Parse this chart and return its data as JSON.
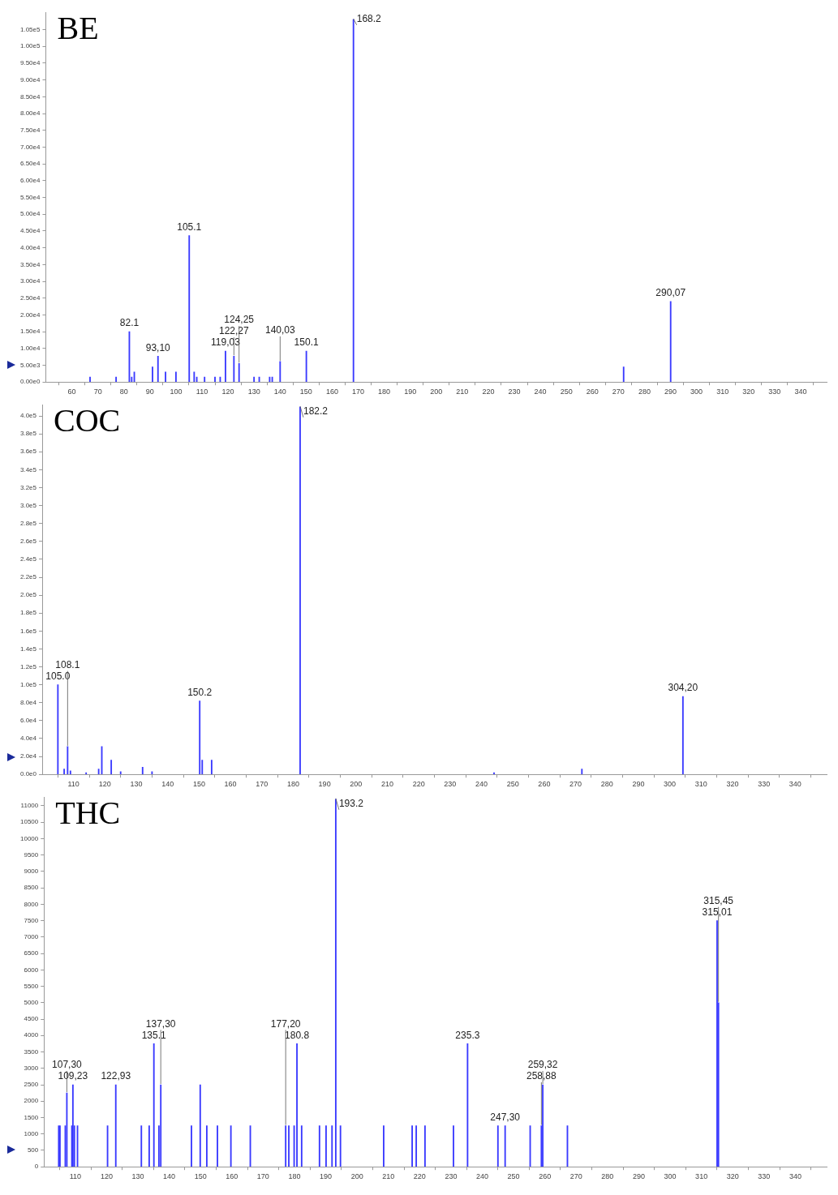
{
  "chart_data": [
    {
      "type": "bar",
      "title": "BE",
      "color": "#3a3aff",
      "grid": false,
      "legend": false,
      "x": [
        67,
        77,
        82.1,
        83,
        84,
        91,
        93.1,
        96,
        100,
        105.1,
        107,
        108,
        111,
        115,
        117,
        119.03,
        122.27,
        124.25,
        130,
        132,
        136,
        137,
        140.03,
        150.1,
        168.2,
        272,
        290.07
      ],
      "values": [
        1500,
        1500,
        15000,
        1500,
        3000,
        4500,
        7700,
        3000,
        3000,
        43600,
        3000,
        1500,
        1500,
        1500,
        1500,
        9200,
        7700,
        5500,
        1500,
        1500,
        1500,
        1500,
        6100,
        9200,
        108000,
        4500,
        24000
      ],
      "xlim": [
        50,
        350
      ],
      "xticks": [
        60,
        70,
        80,
        90,
        100,
        110,
        120,
        130,
        140,
        150,
        160,
        170,
        180,
        190,
        200,
        210,
        220,
        230,
        240,
        250,
        260,
        270,
        280,
        290,
        300,
        310,
        320,
        330,
        340
      ],
      "ylim": [
        0,
        110000
      ],
      "yticks": [
        {
          "value": 0,
          "label": "0.00e0"
        },
        {
          "value": 5000,
          "label": "5.00e3"
        },
        {
          "value": 10000,
          "label": "1.00e4"
        },
        {
          "value": 15000,
          "label": "1.50e4"
        },
        {
          "value": 20000,
          "label": "2.00e4"
        },
        {
          "value": 25000,
          "label": "2.50e4"
        },
        {
          "value": 30000,
          "label": "3.00e4"
        },
        {
          "value": 35000,
          "label": "3.50e4"
        },
        {
          "value": 40000,
          "label": "4.00e4"
        },
        {
          "value": 45000,
          "label": "4.50e4"
        },
        {
          "value": 50000,
          "label": "5.00e4"
        },
        {
          "value": 55000,
          "label": "5.50e4"
        },
        {
          "value": 60000,
          "label": "6.00e4"
        },
        {
          "value": 65000,
          "label": "6.50e4"
        },
        {
          "value": 70000,
          "label": "7.00e4"
        },
        {
          "value": 75000,
          "label": "7.50e4"
        },
        {
          "value": 80000,
          "label": "8.00e4"
        },
        {
          "value": 85000,
          "label": "8.50e4"
        },
        {
          "value": 90000,
          "label": "9.00e4"
        },
        {
          "value": 95000,
          "label": "9.50e4"
        },
        {
          "value": 100000,
          "label": "1.00e5"
        },
        {
          "value": 105000,
          "label": "1.05e5"
        }
      ],
      "annotations": [
        {
          "text": "168.2",
          "x": 168.2,
          "y": 108000
        },
        {
          "text": "105.1",
          "x": 105.1,
          "y": 43600
        },
        {
          "text": "82.1",
          "x": 82.1,
          "y": 15000
        },
        {
          "text": "150.1",
          "x": 150.1,
          "y": 9200
        },
        {
          "text": "93,10",
          "x": 93.1,
          "y": 7700
        },
        {
          "text": "119,03",
          "x": 119.03,
          "y": 9200
        },
        {
          "text": "122,27",
          "x": 122.27,
          "y": 7700
        },
        {
          "text": "124,25",
          "x": 124.25,
          "y": 5500
        },
        {
          "text": "140,03",
          "x": 140.03,
          "y": 6100
        },
        {
          "text": "290,07",
          "x": 290.07,
          "y": 24000
        }
      ]
    },
    {
      "type": "bar",
      "title": "COC",
      "color": "#3a3aff",
      "grid": false,
      "legend": false,
      "x": [
        105.0,
        107,
        108.1,
        109,
        114,
        118,
        119,
        122,
        125,
        132,
        135,
        150.2,
        151,
        154,
        182.2,
        244,
        272,
        304.2
      ],
      "values": [
        100000,
        6000,
        31000,
        4000,
        2000,
        6000,
        31000,
        16000,
        3000,
        8000,
        3000,
        82000,
        16000,
        16000,
        410000,
        2000,
        6000,
        87000
      ],
      "xlim": [
        100,
        350
      ],
      "xticks": [
        110,
        120,
        130,
        140,
        150,
        160,
        170,
        180,
        190,
        200,
        210,
        220,
        230,
        240,
        250,
        260,
        270,
        280,
        290,
        300,
        310,
        320,
        330,
        340
      ],
      "ylim": [
        0,
        412000
      ],
      "yticks": [
        {
          "value": 0,
          "label": "0.0e0"
        },
        {
          "value": 20000,
          "label": "2.0e4"
        },
        {
          "value": 40000,
          "label": "4.0e4"
        },
        {
          "value": 60000,
          "label": "6.0e4"
        },
        {
          "value": 80000,
          "label": "8.0e4"
        },
        {
          "value": 100000,
          "label": "1.0e5"
        },
        {
          "value": 120000,
          "label": "1.2e5"
        },
        {
          "value": 140000,
          "label": "1.4e5"
        },
        {
          "value": 160000,
          "label": "1.6e5"
        },
        {
          "value": 180000,
          "label": "1.8e5"
        },
        {
          "value": 200000,
          "label": "2.0e5"
        },
        {
          "value": 220000,
          "label": "2.2e5"
        },
        {
          "value": 240000,
          "label": "2.4e5"
        },
        {
          "value": 260000,
          "label": "2.6e5"
        },
        {
          "value": 280000,
          "label": "2.8e5"
        },
        {
          "value": 300000,
          "label": "3.0e5"
        },
        {
          "value": 320000,
          "label": "3.2e5"
        },
        {
          "value": 340000,
          "label": "3.4e5"
        },
        {
          "value": 360000,
          "label": "3.6e5"
        },
        {
          "value": 380000,
          "label": "3.8e5"
        },
        {
          "value": 400000,
          "label": "4.0e5"
        }
      ],
      "annotations": [
        {
          "text": "182.2",
          "x": 182.2,
          "y": 410000
        },
        {
          "text": "105.0",
          "x": 105.0,
          "y": 100000
        },
        {
          "text": "108.1",
          "x": 108.1,
          "y": 31000
        },
        {
          "text": "150.2",
          "x": 150.2,
          "y": 82000
        },
        {
          "text": "304,20",
          "x": 304.2,
          "y": 87000
        }
      ]
    },
    {
      "type": "bar",
      "title": "THC",
      "color": "#3a3aff",
      "grid": false,
      "legend": false,
      "x": [
        104.7,
        105.1,
        106.8,
        107.3,
        108.9,
        109.23,
        109.7,
        110.7,
        120.3,
        122.93,
        131.1,
        133.6,
        135.0,
        135.1,
        136.7,
        137.3,
        147.1,
        149.9,
        152.0,
        155.4,
        159.7,
        165.9,
        177.2,
        178.2,
        179.9,
        180.8,
        182.3,
        188.0,
        190.1,
        192.0,
        193.2,
        194.7,
        208.5,
        217.6,
        218.9,
        221.7,
        230.8,
        235.3,
        245.0,
        247.3,
        255.3,
        258.88,
        259.32,
        267.2,
        315.01,
        315.45
      ],
      "values": [
        1250,
        1250,
        1250,
        2250,
        1250,
        2500,
        1250,
        1250,
        1250,
        2500,
        1250,
        1250,
        null,
        3750,
        1250,
        2500,
        1250,
        2500,
        1250,
        1250,
        1250,
        1250,
        1250,
        1250,
        1250,
        3750,
        1250,
        1250,
        1250,
        1250,
        11200,
        1250,
        1250,
        1250,
        1250,
        1250,
        1250,
        3750,
        1250,
        1250,
        1250,
        1250,
        2500,
        1250,
        7500,
        5000
      ],
      "xlim": [
        100,
        350
      ],
      "xticks": [
        110,
        120,
        130,
        140,
        150,
        160,
        170,
        180,
        190,
        200,
        210,
        220,
        230,
        240,
        250,
        260,
        270,
        280,
        290,
        300,
        310,
        320,
        330,
        340
      ],
      "ylim": [
        0,
        11250
      ],
      "yticks": [
        0,
        500,
        1000,
        1500,
        2000,
        2500,
        3000,
        3500,
        4000,
        4500,
        5000,
        5500,
        6000,
        6500,
        7000,
        7500,
        8000,
        8500,
        9000,
        9500,
        10000,
        10500,
        11000
      ],
      "annotations": [
        {
          "text": "193.2",
          "x": 193.2,
          "y": 11200
        },
        {
          "text": "135.1",
          "x": 135.1,
          "y": 3750
        },
        {
          "text": "180.8",
          "x": 180.8,
          "y": 3750
        },
        {
          "text": "235.3",
          "x": 235.3,
          "y": 3750
        },
        {
          "text": "109,23",
          "x": 109.23,
          "y": 2500
        },
        {
          "text": "107,30",
          "x": 107.3,
          "y": 2250
        },
        {
          "text": "122,93",
          "x": 122.93,
          "y": 2500
        },
        {
          "text": "137,30",
          "x": 137.3,
          "y": 2500
        },
        {
          "text": "177,20",
          "x": 177.2,
          "y": 1250
        },
        {
          "text": "247,30",
          "x": 247.3,
          "y": 1250
        },
        {
          "text": "258,88",
          "x": 258.88,
          "y": 1250
        },
        {
          "text": "259,32",
          "x": 259.32,
          "y": 2500
        },
        {
          "text": "315,01",
          "x": 315.01,
          "y": 7500
        },
        {
          "text": "315,45",
          "x": 315.45,
          "y": 5000
        }
      ]
    }
  ]
}
